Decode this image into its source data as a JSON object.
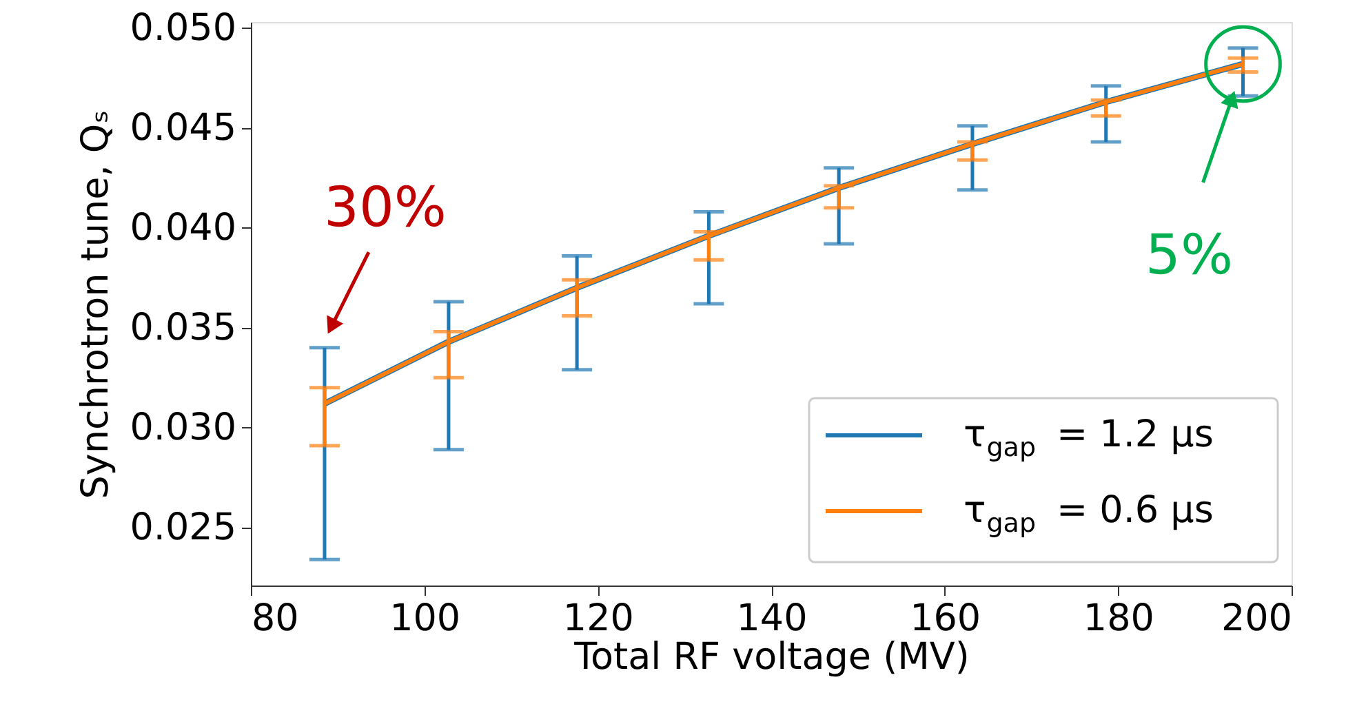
{
  "chart_data": {
    "type": "line",
    "xlabel": "Total RF voltage (MV)",
    "ylabel": "Synchrotron tune, Qₛ",
    "x": [
      88.5,
      102.8,
      117.6,
      132.8,
      147.8,
      163.2,
      178.6,
      194.4
    ],
    "series": [
      {
        "name": "τ$_{gap}$ = 1.2 μs",
        "color": "#1f77b4",
        "values": [
          0.0312,
          0.0343,
          0.037,
          0.0396,
          0.042,
          0.0442,
          0.0463,
          0.0482
        ],
        "errors": [
          [
            0.0234,
            0.034
          ],
          [
            0.0289,
            0.0363
          ],
          [
            0.0329,
            0.0386
          ],
          [
            0.0362,
            0.0408
          ],
          [
            0.0392,
            0.043
          ],
          [
            0.0419,
            0.0451
          ],
          [
            0.0443,
            0.0471
          ],
          [
            0.0466,
            0.049
          ]
        ]
      },
      {
        "name": "τ$_{gap}$ = 0.6 μs",
        "color": "#ff7f0e",
        "values": [
          0.0312,
          0.0343,
          0.037,
          0.0396,
          0.042,
          0.0442,
          0.0463,
          0.0482
        ],
        "errors": [
          [
            0.0291,
            0.032
          ],
          [
            0.0325,
            0.0348
          ],
          [
            0.0356,
            0.0374
          ],
          [
            0.0384,
            0.0398
          ],
          [
            0.041,
            0.0421
          ],
          [
            0.0434,
            0.0443
          ],
          [
            0.0456,
            0.0464
          ],
          [
            0.0478,
            0.0485
          ]
        ]
      }
    ],
    "xlim": [
      80,
      200
    ],
    "xticks": [
      80,
      100,
      120,
      140,
      160,
      180,
      200
    ],
    "ylim": [
      0.0221,
      0.0503
    ],
    "yticks": [
      {
        "value": 0.025,
        "label": "0.025"
      },
      {
        "value": 0.03,
        "label": "0.030"
      },
      {
        "value": 0.035,
        "label": "0.035"
      },
      {
        "value": 0.04,
        "label": "0.040"
      },
      {
        "value": 0.045,
        "label": "0.045"
      },
      {
        "value": 0.05,
        "label": "0.050"
      }
    ],
    "annotations": [
      {
        "text": "30%",
        "x": 88.5,
        "y": 0.0312
      },
      {
        "text": "5%",
        "x": 194.4,
        "y": 0.0482
      }
    ],
    "legend": "bottom right",
    "marker": "none",
    "line_style": "solid",
    "grid": false
  }
}
